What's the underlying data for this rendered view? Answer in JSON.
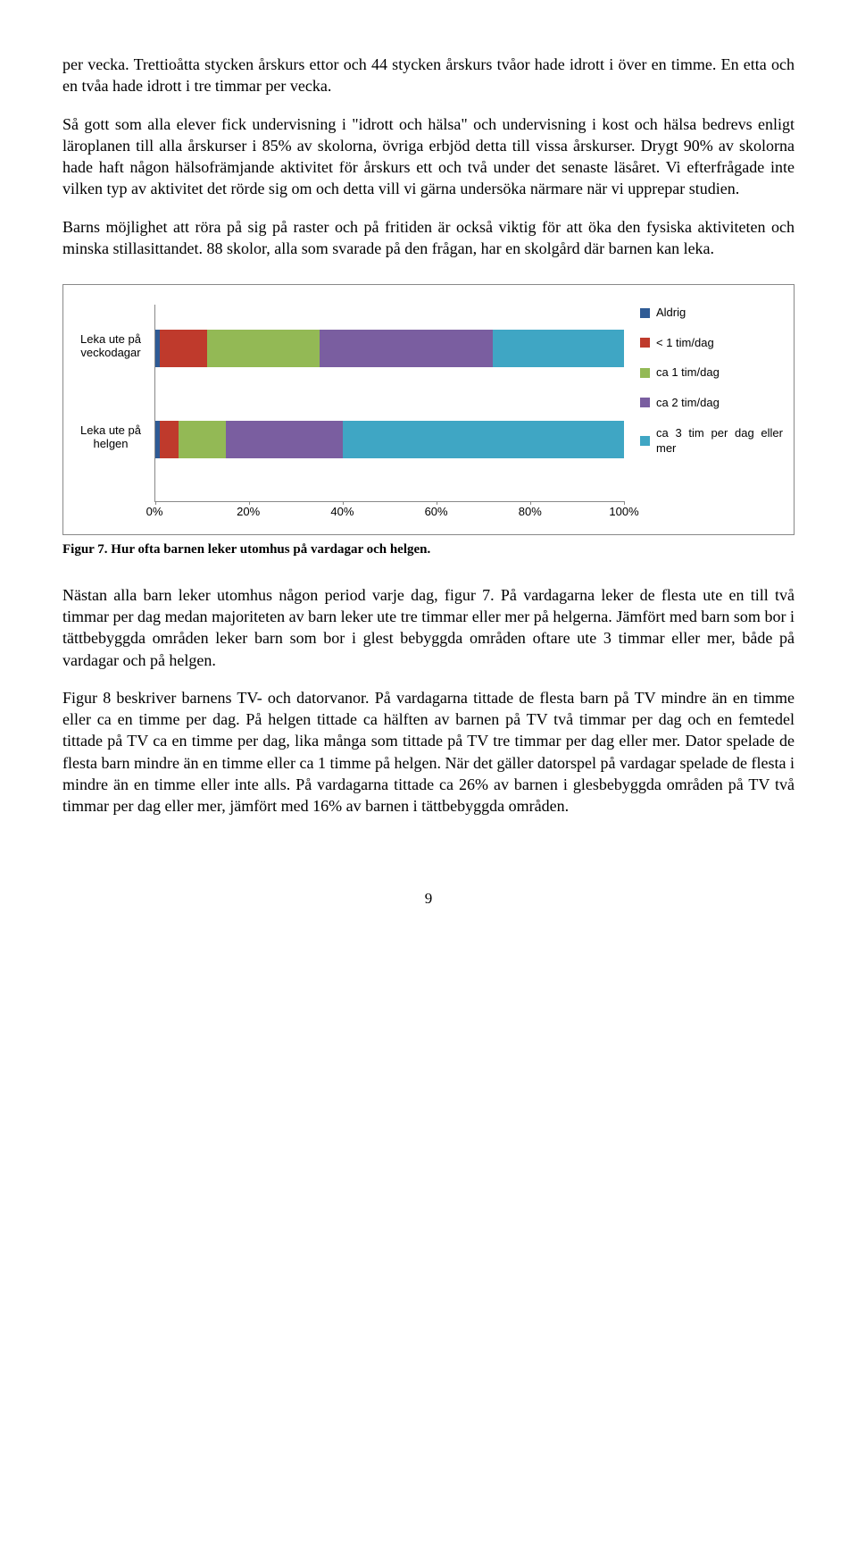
{
  "para1": "per vecka. Trettioåtta stycken årskurs ettor och 44 stycken årskurs tvåor hade idrott i över en timme. En etta och en tvåa hade idrott i tre timmar per vecka.",
  "para2": "Så gott som alla elever fick undervisning i \"idrott och hälsa\" och undervisning i kost och hälsa bedrevs enligt läroplanen till alla årskurser i 85% av skolorna, övriga erbjöd detta till vissa årskurser. Drygt 90% av skolorna hade haft någon hälsofrämjande aktivitet för årskurs ett och två under det senaste läsåret. Vi efterfrågade inte vilken typ av aktivitet det rörde sig om och detta vill vi gärna undersöka närmare när vi upprepar studien.",
  "para3": "Barns möjlighet att röra på sig på raster och på fritiden är också viktig för att öka den fysiska aktiviteten och minska stillasittandet. 88 skolor, alla som svarade på den frågan, har en skolgård där barnen kan leka.",
  "chart": {
    "type": "stacked-bar-horizontal",
    "categories": [
      {
        "label": "Leka ute på veckodagar",
        "segments": [
          1,
          10,
          24,
          37,
          28
        ]
      },
      {
        "label": "Leka ute på helgen",
        "segments": [
          1,
          4,
          10,
          25,
          60
        ]
      }
    ],
    "series": [
      {
        "label": "Aldrig",
        "color": "#2f5b95"
      },
      {
        "label": "< 1 tim/dag",
        "color": "#bf3a2c"
      },
      {
        "label": "ca 1 tim/dag",
        "color": "#93b955"
      },
      {
        "label": "ca 2 tim/dag",
        "color": "#7a5ea0"
      },
      {
        "label": "ca 3 tim per dag eller mer",
        "color": "#3fa6c4"
      }
    ],
    "x_ticks": [
      "0%",
      "20%",
      "40%",
      "60%",
      "80%",
      "100%"
    ],
    "background": "#ffffff",
    "border_color": "#888888",
    "label_fontsize": 13
  },
  "caption": "Figur 7. Hur ofta barnen leker utomhus på vardagar och helgen.",
  "para4": "Nästan alla barn leker utomhus någon period varje dag, figur 7. På vardagarna leker de flesta ute en till två timmar per dag medan majoriteten av barn leker ute tre timmar eller mer på helgerna. Jämfört med barn som bor i tättbebyggda områden leker barn som bor i glest bebyggda områden oftare ute 3 timmar eller mer, både på vardagar och på helgen.",
  "para5": "Figur 8 beskriver barnens TV- och datorvanor. På vardagarna tittade de flesta barn på TV mindre än en timme eller ca en timme per dag. På helgen tittade ca hälften av barnen på TV två timmar per dag och en femtedel tittade på TV ca en timme per dag, lika många som tittade på TV tre timmar per dag eller mer. Dator spelade de flesta barn mindre än en timme eller ca 1 timme på helgen. När det gäller datorspel på vardagar spelade de flesta i mindre än en timme eller inte alls. På vardagarna tittade ca 26% av barnen i glesbebyggda områden på TV två timmar per dag eller mer, jämfört med 16% av barnen i tättbebyggda områden.",
  "page_number": "9"
}
